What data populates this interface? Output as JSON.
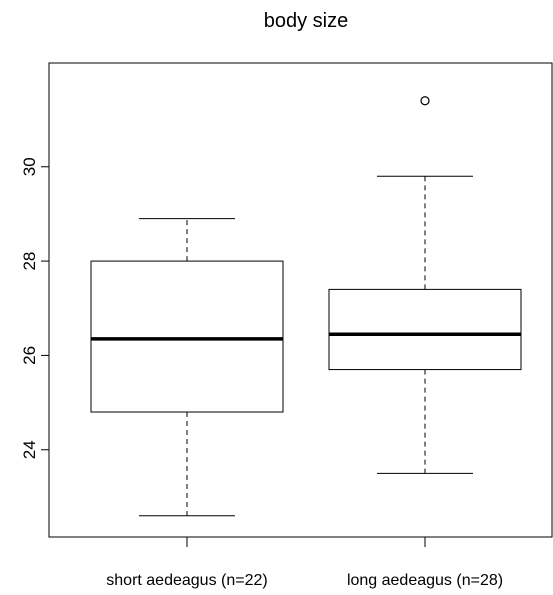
{
  "chart_data": {
    "type": "box",
    "title": "body size",
    "xlabel": "",
    "ylabel": "",
    "ylim": [
      22.15,
      32.2
    ],
    "yticks": [
      24,
      26,
      28,
      30
    ],
    "ytick_labels": [
      "24",
      "26",
      "28",
      "30"
    ],
    "categories": [
      "short aedeagus (n=22)",
      "long aedeagus (n=28)"
    ],
    "boxes": [
      {
        "label": "short aedeagus (n=22)",
        "whisker_low": 22.6,
        "q1": 24.8,
        "median": 26.35,
        "q3": 28.0,
        "whisker_high": 28.9,
        "outliers": []
      },
      {
        "label": "long aedeagus (n=28)",
        "whisker_low": 23.5,
        "q1": 25.7,
        "median": 26.45,
        "q3": 27.4,
        "whisker_high": 29.8,
        "outliers": [
          31.4
        ]
      }
    ],
    "grid": false,
    "legend": "none"
  }
}
